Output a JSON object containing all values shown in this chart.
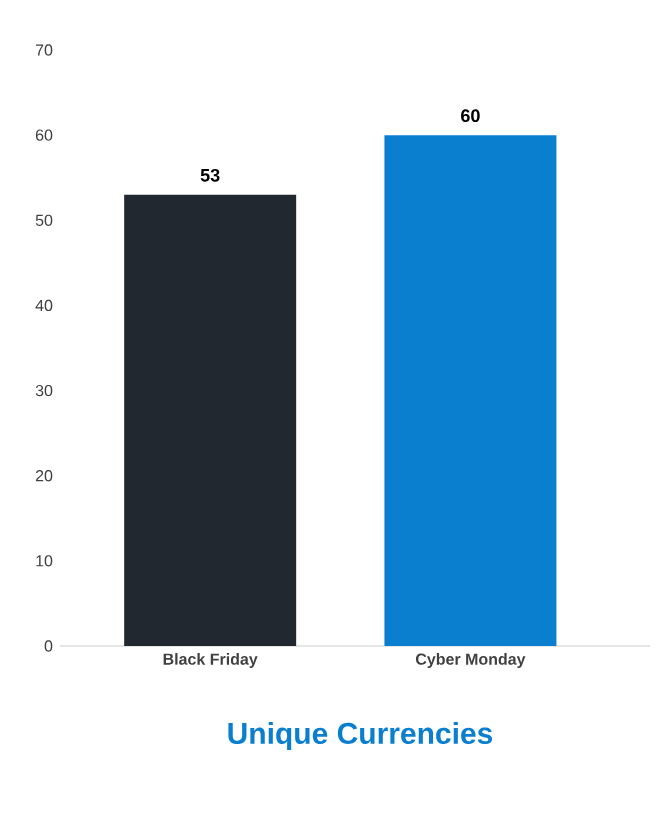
{
  "chart_data": {
    "type": "bar",
    "title": "Unique Currencies",
    "categories": [
      "Black Friday",
      "Cyber Monday"
    ],
    "values": [
      53,
      60
    ],
    "colors": [
      "#212830",
      "#0a7fd0"
    ],
    "ylim": [
      0,
      70
    ],
    "yticks": [
      0,
      10,
      20,
      30,
      40,
      50,
      60,
      70
    ],
    "data_labels": true
  }
}
